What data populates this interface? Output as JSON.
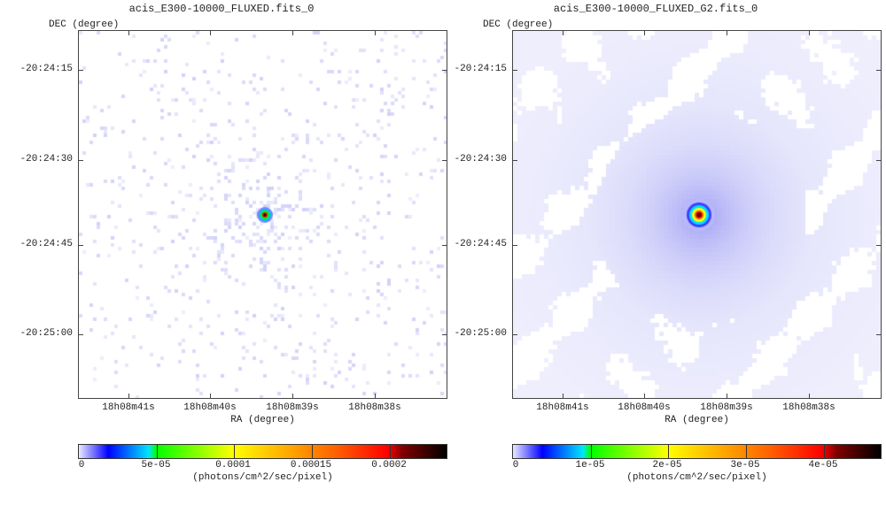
{
  "panels": [
    {
      "title": "acis_E300-10000_FLUXED.fits_0",
      "y_axis_label": "DEC (degree)",
      "x_axis_label": "RA (degree)",
      "y_ticks": [
        "-20:24:15",
        "-20:24:30",
        "-20:24:45",
        "-20:25:00"
      ],
      "x_ticks": [
        "18h08m41s",
        "18h08m40s",
        "18h08m39s",
        "18h08m38s"
      ],
      "colorbar": {
        "ticks": [
          "0",
          "5e-05",
          "0.0001",
          "0.00015",
          "0.0002"
        ],
        "unit": "(photons/cm^2/sec/pixel)"
      },
      "smoothed": false
    },
    {
      "title": "acis_E300-10000_FLUXED_G2.fits_0",
      "y_axis_label": "DEC (degree)",
      "x_axis_label": "RA (degree)",
      "y_ticks": [
        "-20:24:15",
        "-20:24:30",
        "-20:24:45",
        "-20:25:00"
      ],
      "x_ticks": [
        "18h08m41s",
        "18h08m40s",
        "18h08m39s",
        "18h08m38s"
      ],
      "colorbar": {
        "ticks": [
          "0",
          "1e-05",
          "2e-05",
          "3e-05",
          "4e-05"
        ],
        "unit": "(photons/cm^2/sec/pixel)"
      },
      "smoothed": true
    }
  ]
}
